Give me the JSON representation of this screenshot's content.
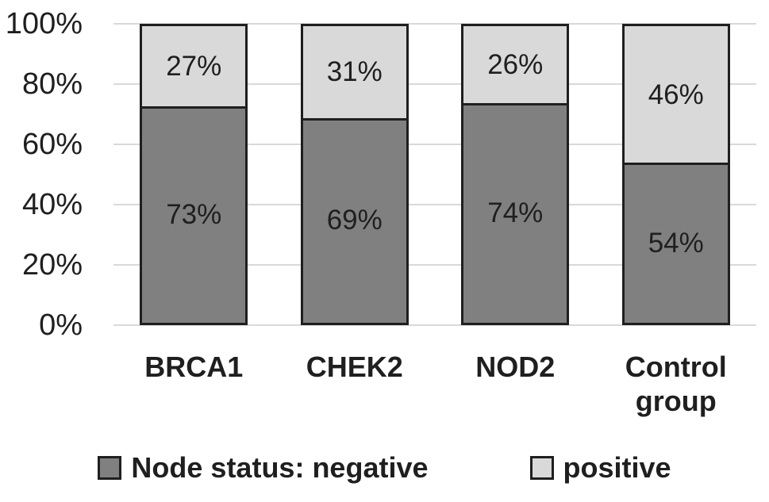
{
  "chart_data": {
    "type": "bar",
    "variant": "stacked-100",
    "categories": [
      "BRCA1",
      "CHEK2",
      "NOD2",
      "Control group"
    ],
    "series": [
      {
        "name": "Node status: negative",
        "values": [
          73,
          69,
          74,
          54
        ],
        "color": "#808080"
      },
      {
        "name": "positive",
        "values": [
          27,
          31,
          26,
          46
        ],
        "color": "#d9d9d9"
      }
    ],
    "data_labels": {
      "negative": [
        "73%",
        "69%",
        "74%",
        "54%"
      ],
      "positive": [
        "27%",
        "31%",
        "26%",
        "46%"
      ]
    },
    "title": "",
    "xlabel": "",
    "ylabel": "",
    "ylim": [
      0,
      100
    ],
    "ytick_step": 20,
    "ytick_labels": [
      "0%",
      "20%",
      "40%",
      "60%",
      "80%",
      "100%"
    ],
    "grid": true,
    "gridline_color": "#d9d9d9",
    "bar_border_color": "#1f1f1f",
    "legend_position": "bottom"
  }
}
